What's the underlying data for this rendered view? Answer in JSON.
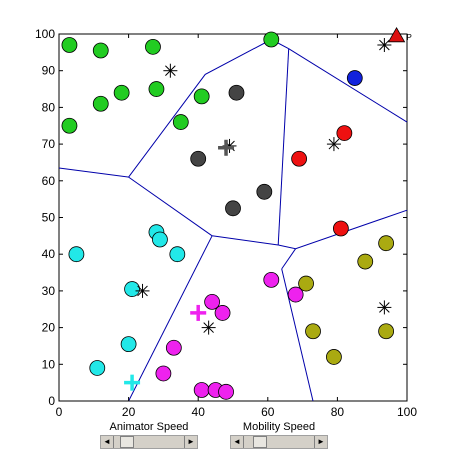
{
  "chart_data": {
    "type": "scatter",
    "title": "",
    "xlabel": "",
    "ylabel": "",
    "xlim": [
      0,
      100
    ],
    "ylim": [
      0,
      100
    ],
    "xticks": [
      0,
      20,
      40,
      60,
      80,
      100
    ],
    "yticks": [
      0,
      10,
      20,
      30,
      40,
      50,
      60,
      70,
      80,
      90,
      100
    ],
    "grid": false,
    "groups": [
      {
        "color": "#22cc22",
        "points": [
          [
            3,
            97
          ],
          [
            12,
            95.5
          ],
          [
            27,
            96.5
          ],
          [
            3,
            75
          ],
          [
            12,
            81
          ],
          [
            18,
            84
          ],
          [
            28,
            85
          ],
          [
            41,
            83
          ],
          [
            35,
            76
          ],
          [
            61,
            98.5
          ]
        ]
      },
      {
        "color": "#444444",
        "points": [
          [
            40,
            66
          ],
          [
            51,
            84
          ],
          [
            59,
            57
          ],
          [
            50,
            52.5
          ]
        ]
      },
      {
        "color": "#ee1111",
        "points": [
          [
            69,
            66
          ],
          [
            82,
            73
          ],
          [
            81,
            47
          ]
        ]
      },
      {
        "color": "#1122dd",
        "points": [
          [
            85,
            88
          ]
        ]
      },
      {
        "color": "#22e8e8",
        "points": [
          [
            5,
            40
          ],
          [
            28,
            46
          ],
          [
            29,
            44
          ],
          [
            34,
            40
          ],
          [
            21,
            30.5
          ],
          [
            20,
            15.5
          ],
          [
            11,
            9
          ]
        ]
      },
      {
        "color": "#ee22ee",
        "points": [
          [
            44,
            27
          ],
          [
            47,
            24
          ],
          [
            61,
            33
          ],
          [
            68,
            29
          ],
          [
            33,
            14.5
          ],
          [
            30,
            7.5
          ],
          [
            41,
            3
          ],
          [
            45,
            3
          ],
          [
            48,
            2.5
          ]
        ]
      },
      {
        "color": "#aaaa11",
        "points": [
          [
            94,
            43
          ],
          [
            88,
            38
          ],
          [
            71,
            32
          ],
          [
            73,
            19
          ],
          [
            94,
            19
          ],
          [
            79,
            12
          ]
        ]
      }
    ],
    "stars": [
      [
        32,
        90
      ],
      [
        93.5,
        97
      ],
      [
        49,
        69.5
      ],
      [
        79,
        70
      ],
      [
        24,
        30
      ],
      [
        43,
        20
      ],
      [
        93.5,
        25.5
      ]
    ],
    "plus_markers": [
      {
        "x": 48,
        "y": 69,
        "color": "#555555"
      },
      {
        "x": 40,
        "y": 24,
        "color": "#ee22ee"
      },
      {
        "x": 21,
        "y": 5,
        "color": "#22e8e8"
      }
    ],
    "triangle": {
      "x": 97,
      "y": 99.5,
      "color": "#dd1111"
    },
    "triangle_label": "P",
    "voronoi_edges": [
      [
        [
          0,
          63.5
        ],
        [
          20,
          61
        ]
      ],
      [
        [
          20,
          61
        ],
        [
          42,
          89
        ],
        [
          61,
          98.5
        ],
        [
          66,
          96
        ]
      ],
      [
        [
          66,
          96
        ],
        [
          100,
          76
        ]
      ],
      [
        [
          20,
          61
        ],
        [
          44,
          45
        ]
      ],
      [
        [
          44,
          45
        ],
        [
          20,
          0
        ]
      ],
      [
        [
          44,
          45
        ],
        [
          63,
          42.5
        ]
      ],
      [
        [
          63,
          42.5
        ],
        [
          66,
          96
        ]
      ],
      [
        [
          63,
          42.5
        ],
        [
          68,
          41.5
        ],
        [
          100,
          52
        ]
      ],
      [
        [
          68,
          41.5
        ],
        [
          64,
          36
        ]
      ],
      [
        [
          64,
          36
        ],
        [
          73,
          0
        ]
      ]
    ]
  },
  "controls": {
    "animator_label": "Animator Speed",
    "mobility_label": "Mobility Speed",
    "animator_value": 0.12,
    "mobility_value": 0.18,
    "left_arrow": "◄",
    "right_arrow": "►"
  }
}
